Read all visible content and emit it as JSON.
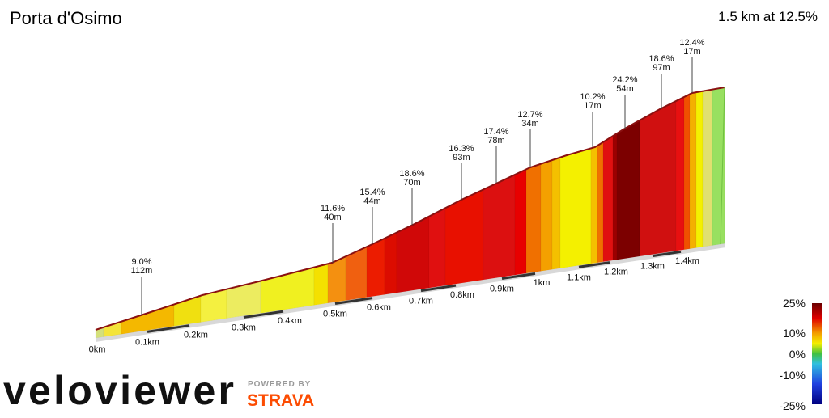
{
  "header": {
    "title": "Porta d'Osimo",
    "summary": "1.5 km at 12.5%"
  },
  "annotations": [
    {
      "grade": "9.0%",
      "length": "112m"
    },
    {
      "grade": "11.6%",
      "length": "40m"
    },
    {
      "grade": "15.4%",
      "length": "44m"
    },
    {
      "grade": "18.6%",
      "length": "70m"
    },
    {
      "grade": "16.3%",
      "length": "93m"
    },
    {
      "grade": "17.4%",
      "length": "78m"
    },
    {
      "grade": "12.7%",
      "length": "34m"
    },
    {
      "grade": "10.2%",
      "length": "17m"
    },
    {
      "grade": "24.2%",
      "length": "54m"
    },
    {
      "grade": "18.6%",
      "length": "97m"
    },
    {
      "grade": "12.4%",
      "length": "17m"
    }
  ],
  "distance_labels": [
    "0km",
    "0.1km",
    "0.2km",
    "0.3km",
    "0.4km",
    "0.5km",
    "0.6km",
    "0.7km",
    "0.8km",
    "0.9km",
    "1km",
    "1.1km",
    "1.2km",
    "1.3km",
    "1.4km"
  ],
  "legend": [
    "25%",
    "10%",
    "0%",
    "-10%",
    "-25%"
  ],
  "branding": {
    "logo": "veloviewer",
    "powered": "POWERED BY",
    "strava": "STRAVA"
  }
}
